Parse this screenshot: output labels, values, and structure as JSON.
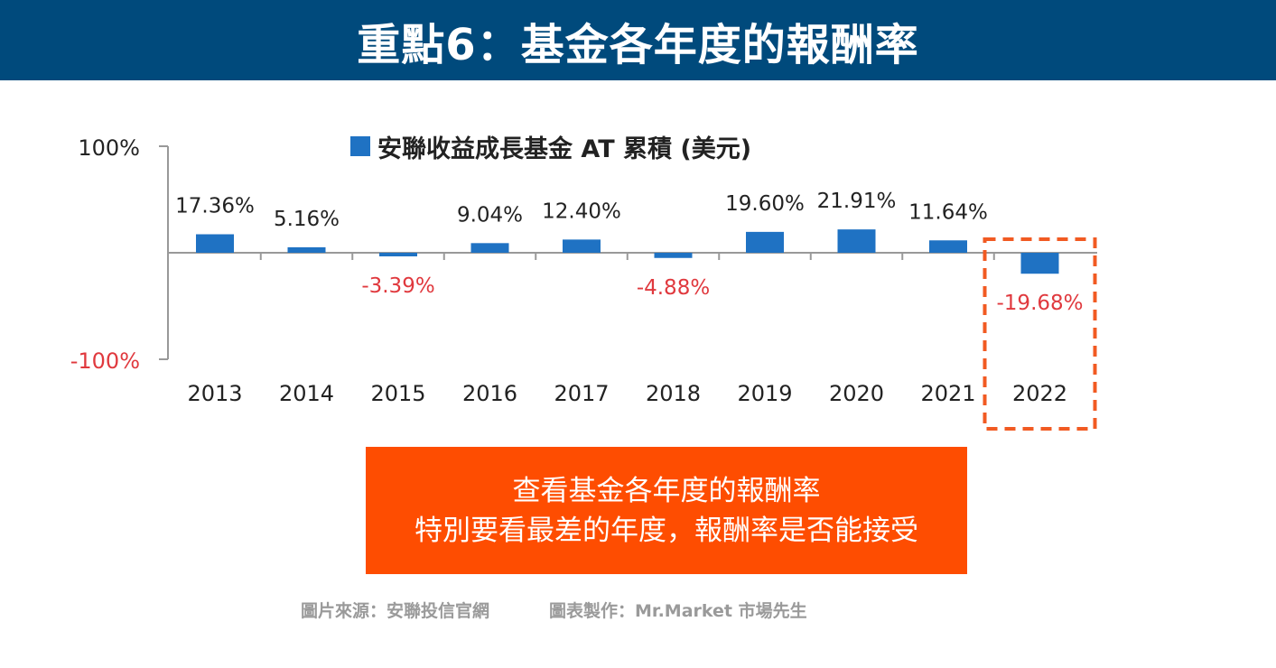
{
  "header": {
    "title": "重點6：基金各年度的報酬率"
  },
  "chart_data": {
    "type": "bar",
    "title": "安聯收益成長基金 AT 累積 (美元)",
    "series": [
      {
        "name": "安聯收益成長基金 AT 累積 (美元)",
        "values": [
          17.36,
          5.16,
          -3.39,
          9.04,
          12.4,
          -4.88,
          19.6,
          21.91,
          11.64,
          -19.68
        ]
      }
    ],
    "categories": [
      "2013",
      "2014",
      "2015",
      "2016",
      "2017",
      "2018",
      "2019",
      "2020",
      "2021",
      "2022"
    ],
    "data_labels": [
      "17.36%",
      "5.16%",
      "-3.39%",
      "9.04%",
      "12.40%",
      "-4.88%",
      "19.60%",
      "21.91%",
      "11.64%",
      "-19.68%"
    ],
    "yticks": [
      "100%",
      "-100%"
    ],
    "ylim": [
      -100,
      100
    ],
    "highlight_category": "2022",
    "colors": {
      "bar": "#1f72c3",
      "negative_label": "#e0393e",
      "positive_label": "#222222",
      "highlight": "#f15a22"
    }
  },
  "callout": {
    "line1": "查看基金各年度的報酬率",
    "line2": "特別要看最差的年度，報酬率是否能接受"
  },
  "footer": {
    "source": "圖片來源：安聯投信官網",
    "credit": "圖表製作：Mr.Market 市場先生"
  }
}
